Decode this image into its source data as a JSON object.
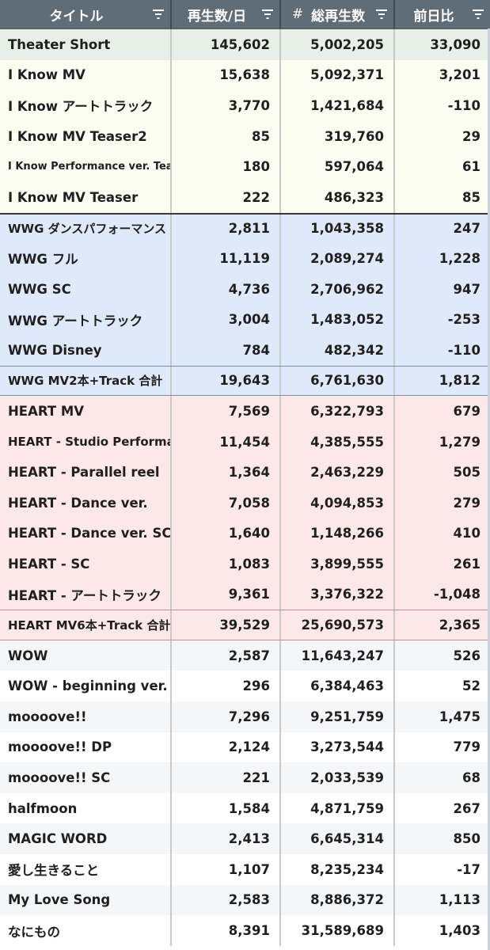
{
  "header": {
    "col_title": "タイトル",
    "col_daily": "再生数/日",
    "col_total_hash": "#",
    "col_total": "総再生数",
    "col_diff": "前日比"
  },
  "rows": [
    {
      "title": "Theater Short",
      "daily": "145,602",
      "total": "5,002,205",
      "diff": "33,090"
    },
    {
      "title": "I Know MV",
      "daily": "15,638",
      "total": "5,092,371",
      "diff": "3,201"
    },
    {
      "title": "I Know アートトラック",
      "daily": "3,770",
      "total": "1,421,684",
      "diff": "-110"
    },
    {
      "title": "I Know MV Teaser2",
      "daily": "85",
      "total": "319,760",
      "diff": "29"
    },
    {
      "title": "I Know Performance ver. Teaser",
      "daily": "180",
      "total": "597,064",
      "diff": "61"
    },
    {
      "title": "I Know MV Teaser",
      "daily": "222",
      "total": "486,323",
      "diff": "85"
    },
    {
      "title": "WWG ダンスパフォーマンス",
      "daily": "2,811",
      "total": "1,043,358",
      "diff": "247"
    },
    {
      "title": "WWG フル",
      "daily": "11,119",
      "total": "2,089,274",
      "diff": "1,228"
    },
    {
      "title": "WWG SC",
      "daily": "4,736",
      "total": "2,706,962",
      "diff": "947"
    },
    {
      "title": "WWG アートトラック",
      "daily": "3,004",
      "total": "1,483,052",
      "diff": "-253"
    },
    {
      "title": "WWG Disney",
      "daily": "784",
      "total": "482,342",
      "diff": "-110"
    },
    {
      "title": "WWG MV2本+Track 合計",
      "daily": "19,643",
      "total": "6,761,630",
      "diff": "1,812"
    },
    {
      "title": "HEART MV",
      "daily": "7,569",
      "total": "6,322,793",
      "diff": "679"
    },
    {
      "title": "HEART - Studio Performance",
      "daily": "11,454",
      "total": "4,385,555",
      "diff": "1,279"
    },
    {
      "title": "HEART - Parallel reel",
      "daily": "1,364",
      "total": "2,463,229",
      "diff": "505"
    },
    {
      "title": "HEART - Dance ver.",
      "daily": "7,058",
      "total": "4,094,853",
      "diff": "279"
    },
    {
      "title": "HEART - Dance ver. SC",
      "daily": "1,640",
      "total": "1,148,266",
      "diff": "410"
    },
    {
      "title": "HEART - SC",
      "daily": "1,083",
      "total": "3,899,555",
      "diff": "261"
    },
    {
      "title": "HEART - アートトラック",
      "daily": "9,361",
      "total": "3,376,322",
      "diff": "-1,048"
    },
    {
      "title": "HEART MV6本+Track 合計",
      "daily": "39,529",
      "total": "25,690,573",
      "diff": "2,365"
    },
    {
      "title": "WOW",
      "daily": "2,587",
      "total": "11,643,247",
      "diff": "526"
    },
    {
      "title": "WOW - beginning ver.",
      "daily": "296",
      "total": "6,384,463",
      "diff": "52"
    },
    {
      "title": "moooove!!",
      "daily": "7,296",
      "total": "9,251,759",
      "diff": "1,475"
    },
    {
      "title": "moooove!! DP",
      "daily": "2,124",
      "total": "3,273,544",
      "diff": "779"
    },
    {
      "title": "moooove!! SC",
      "daily": "221",
      "total": "2,033,539",
      "diff": "68"
    },
    {
      "title": "halfmoon",
      "daily": "1,584",
      "total": "4,871,759",
      "diff": "267"
    },
    {
      "title": "MAGIC WORD",
      "daily": "2,413",
      "total": "6,645,314",
      "diff": "850"
    },
    {
      "title": "愛し生きること",
      "daily": "1,107",
      "total": "8,235,234",
      "diff": "-17"
    },
    {
      "title": "My Love Song",
      "daily": "2,583",
      "total": "8,886,372",
      "diff": "1,113"
    },
    {
      "title": "なにもの",
      "daily": "8,391",
      "total": "31,589,689",
      "diff": "1,403"
    }
  ],
  "colors": {
    "header_bg": "#5f6d79",
    "highlight_row": "#e8efe7",
    "i_know_group": "#fcfdf1",
    "wwg_group": "#deeaf9",
    "heart_group": "#fde8e9",
    "other_alt": "#f5f6f8"
  },
  "icons": [
    "filter-icon"
  ]
}
